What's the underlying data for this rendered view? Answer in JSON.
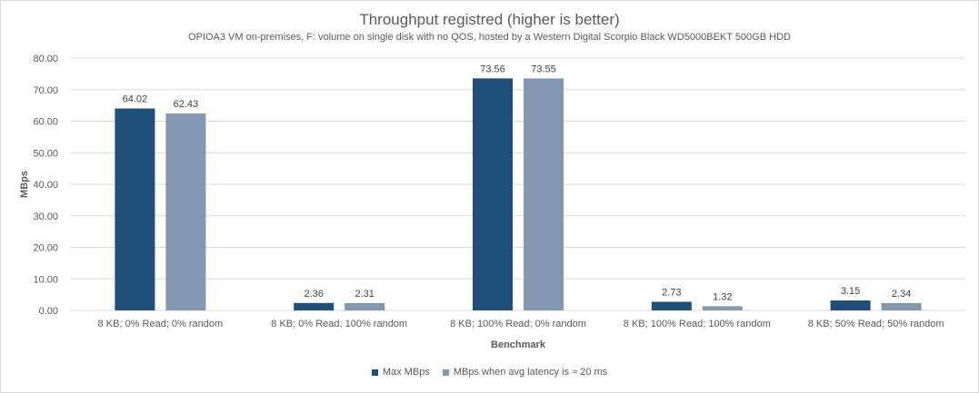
{
  "chart_data": {
    "type": "bar",
    "title": "Throughput registred (higher is better)",
    "subtitle": "OPIOA3 VM on-premises, F: volume on single disk with no QOS, hosted by a Western Digital Scorpio Black WD5000BEKT 500GB HDD",
    "xlabel": "Benchmark",
    "ylabel": "MBps",
    "ylim": [
      0,
      80
    ],
    "yticks": [
      "0.00",
      "10.00",
      "20.00",
      "30.00",
      "40.00",
      "50.00",
      "60.00",
      "70.00",
      "80.00"
    ],
    "grid": true,
    "legend_position": "bottom",
    "categories": [
      "8 KB; 0% Read; 0% random",
      "8 KB; 0% Read; 100% random",
      "8 KB; 100% Read; 0% random",
      "8 KB; 100% Read; 100% random",
      "8 KB; 50% Read; 50% random"
    ],
    "series": [
      {
        "name": "Max MBps",
        "color": "#1f4e79",
        "values": [
          64.02,
          2.36,
          73.56,
          2.73,
          3.15
        ],
        "labels": [
          "64.02",
          "2.36",
          "73.56",
          "2.73",
          "3.15"
        ]
      },
      {
        "name": "MBps when avg latency is ≈ 20 ms",
        "color": "#8497b0",
        "values": [
          62.43,
          2.31,
          73.55,
          1.32,
          2.34
        ],
        "labels": [
          "62.43",
          "2.31",
          "73.55",
          "1.32",
          "2.34"
        ]
      }
    ]
  }
}
